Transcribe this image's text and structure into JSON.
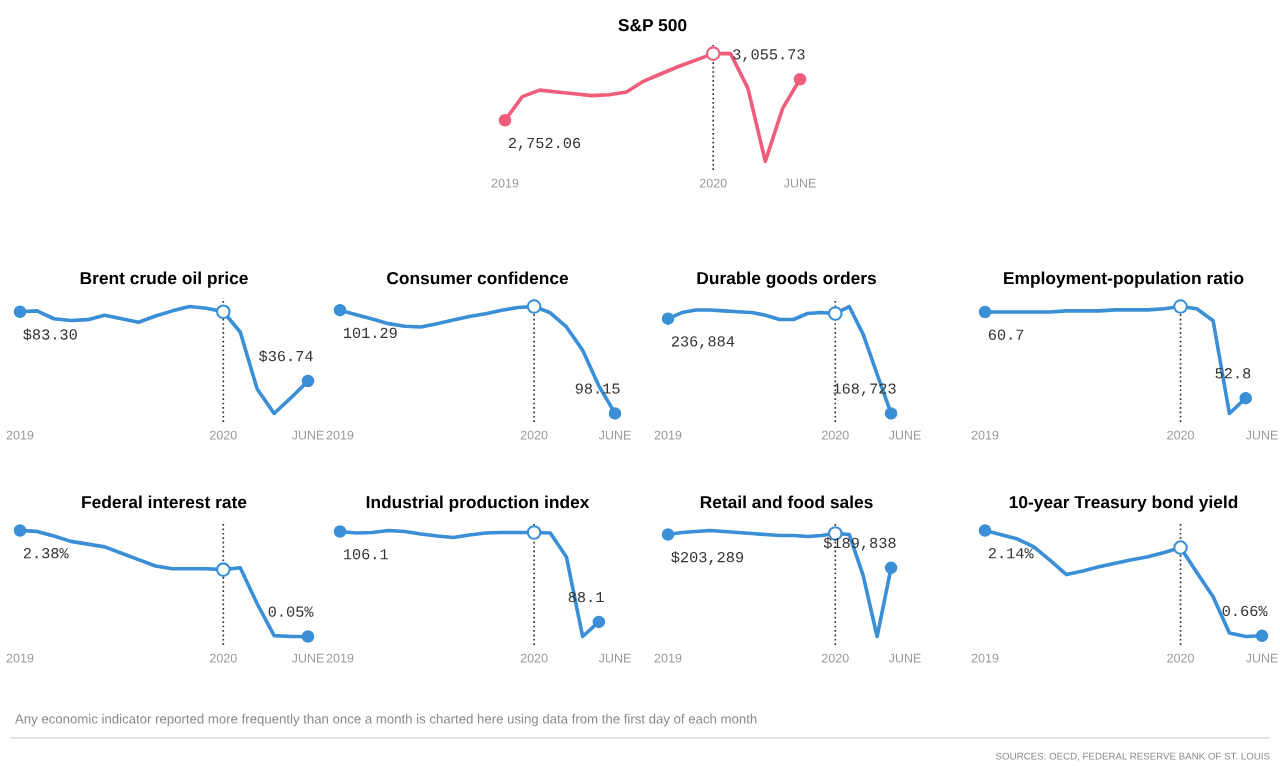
{
  "chart_data": [
    {
      "type": "line",
      "title": "S&P 500",
      "color": "#ef5d7b",
      "x": [
        "2019-01",
        "2019-02",
        "2019-03",
        "2019-04",
        "2019-05",
        "2019-06",
        "2019-07",
        "2019-08",
        "2019-09",
        "2019-10",
        "2019-11",
        "2019-12",
        "2020-01",
        "2020-02",
        "2020-03",
        "2020-04",
        "2020-05",
        "2020-06"
      ],
      "values": [
        2752.06,
        2927,
        2975,
        2961,
        2948,
        2934,
        2941,
        2961,
        3042,
        3096,
        3150,
        3197,
        3245,
        3245,
        2988,
        2448,
        2840,
        3055.73
      ],
      "value_labels": [
        "2,752.06",
        null,
        null,
        null,
        null,
        null,
        null,
        null,
        null,
        null,
        null,
        null,
        null,
        null,
        null,
        null,
        null,
        "3,055.73"
      ],
      "xlim": [
        "2019-01",
        "2020-06"
      ],
      "xticks": [
        {
          "value": "2019-01",
          "label": "2019"
        },
        {
          "value": "2020-01",
          "label": "2020"
        },
        {
          "value": "2020-06",
          "label": "JUNE"
        }
      ],
      "ref_lines": [
        {
          "axis": "x",
          "value": "2020-01",
          "line_style": "dotted"
        }
      ]
    },
    {
      "type": "line",
      "title": "Brent crude oil price",
      "color": "#3a8fd6",
      "x": [
        "2019-01",
        "2019-02",
        "2019-03",
        "2019-04",
        "2019-05",
        "2019-06",
        "2019-07",
        "2019-08",
        "2019-09",
        "2019-10",
        "2019-11",
        "2019-12",
        "2020-01",
        "2020-02",
        "2020-03",
        "2020-04",
        "2020-05",
        "2020-06"
      ],
      "values": [
        83.3,
        83.9,
        78.6,
        77.4,
        78.0,
        81.0,
        78.6,
        76.2,
        80.4,
        83.9,
        86.8,
        85.7,
        83.3,
        69.7,
        31.4,
        14.9,
        25.5,
        36.74
      ],
      "value_labels": [
        "$83.30",
        null,
        null,
        null,
        null,
        null,
        null,
        null,
        null,
        null,
        null,
        null,
        null,
        null,
        null,
        null,
        null,
        "$36.74"
      ],
      "xlim": [
        "2019-01",
        "2020-06"
      ],
      "xticks": [
        {
          "value": "2019-01",
          "label": "2019"
        },
        {
          "value": "2020-01",
          "label": "2020"
        },
        {
          "value": "2020-06",
          "label": "JUNE"
        }
      ],
      "ref_lines": [
        {
          "axis": "x",
          "value": "2020-01",
          "line_style": "dotted"
        }
      ]
    },
    {
      "type": "line",
      "title": "Consumer confidence",
      "color": "#3a8fd6",
      "x": [
        "2019-01",
        "2019-02",
        "2019-03",
        "2019-04",
        "2019-05",
        "2019-06",
        "2019-07",
        "2019-08",
        "2019-09",
        "2019-10",
        "2019-11",
        "2019-12",
        "2020-01",
        "2020-02",
        "2020-03",
        "2020-04",
        "2020-05",
        "2020-06"
      ],
      "values": [
        101.29,
        101.15,
        101.02,
        100.88,
        100.8,
        100.78,
        100.88,
        100.99,
        101.1,
        101.18,
        101.29,
        101.37,
        101.4,
        101.21,
        100.78,
        100.07,
        98.99,
        98.15
      ],
      "value_labels": [
        "101.29",
        null,
        null,
        null,
        null,
        null,
        null,
        null,
        null,
        null,
        null,
        null,
        null,
        null,
        null,
        null,
        null,
        "98.15"
      ],
      "xlim": [
        "2019-01",
        "2020-06"
      ],
      "xticks": [
        {
          "value": "2019-01",
          "label": "2019"
        },
        {
          "value": "2020-01",
          "label": "2020"
        },
        {
          "value": "2020-06",
          "label": "JUNE"
        }
      ],
      "ref_lines": [
        {
          "axis": "x",
          "value": "2020-01",
          "line_style": "dotted"
        }
      ]
    },
    {
      "type": "line",
      "title": "Durable goods orders",
      "color": "#3a8fd6",
      "x": [
        "2019-01",
        "2019-02",
        "2019-03",
        "2019-04",
        "2019-05",
        "2019-06",
        "2019-07",
        "2019-08",
        "2019-09",
        "2019-10",
        "2019-11",
        "2019-12",
        "2020-01",
        "2020-02",
        "2020-03",
        "2020-04",
        "2020-05"
      ],
      "values": [
        236884,
        241300,
        243100,
        243100,
        242500,
        241900,
        241300,
        239400,
        236300,
        236300,
        240600,
        241300,
        240600,
        245600,
        225600,
        196900,
        168723
      ],
      "value_labels": [
        "236,884",
        null,
        null,
        null,
        null,
        null,
        null,
        null,
        null,
        null,
        null,
        null,
        null,
        null,
        null,
        null,
        "168,723"
      ],
      "xlim": [
        "2019-01",
        "2020-06"
      ],
      "xticks": [
        {
          "value": "2019-01",
          "label": "2019"
        },
        {
          "value": "2020-01",
          "label": "2020"
        },
        {
          "value": "2020-06",
          "label": "JUNE"
        }
      ],
      "ref_lines": [
        {
          "axis": "x",
          "value": "2020-01",
          "line_style": "dotted"
        }
      ]
    },
    {
      "type": "line",
      "title": "Employment-population ratio",
      "color": "#3a8fd6",
      "x": [
        "2019-01",
        "2019-02",
        "2019-03",
        "2019-04",
        "2019-05",
        "2019-06",
        "2019-07",
        "2019-08",
        "2019-09",
        "2019-10",
        "2019-11",
        "2019-12",
        "2020-01",
        "2020-02",
        "2020-03",
        "2020-04",
        "2020-05"
      ],
      "values": [
        60.7,
        60.7,
        60.7,
        60.7,
        60.7,
        60.8,
        60.8,
        60.8,
        60.9,
        60.9,
        60.9,
        61.0,
        61.2,
        61.0,
        59.9,
        51.4,
        52.8
      ],
      "value_labels": [
        "60.7",
        null,
        null,
        null,
        null,
        null,
        null,
        null,
        null,
        null,
        null,
        null,
        null,
        null,
        null,
        null,
        "52.8"
      ],
      "xlim": [
        "2019-01",
        "2020-06"
      ],
      "xticks": [
        {
          "value": "2019-01",
          "label": "2019"
        },
        {
          "value": "2020-01",
          "label": "2020"
        },
        {
          "value": "2020-06",
          "label": "JUNE"
        }
      ],
      "ref_lines": [
        {
          "axis": "x",
          "value": "2020-01",
          "line_style": "dotted"
        }
      ]
    },
    {
      "type": "line",
      "title": "Federal interest rate",
      "color": "#3a8fd6",
      "x": [
        "2019-01",
        "2019-02",
        "2019-03",
        "2019-04",
        "2019-05",
        "2019-06",
        "2019-07",
        "2019-08",
        "2019-09",
        "2019-10",
        "2019-11",
        "2019-12",
        "2020-01",
        "2020-02",
        "2020-03",
        "2020-04",
        "2020-05",
        "2020-06"
      ],
      "values": [
        2.38,
        2.36,
        2.26,
        2.14,
        2.08,
        2.02,
        1.88,
        1.74,
        1.6,
        1.54,
        1.54,
        1.54,
        1.52,
        1.56,
        0.77,
        0.07,
        0.05,
        0.05
      ],
      "value_labels": [
        "2.38%",
        null,
        null,
        null,
        null,
        null,
        null,
        null,
        null,
        null,
        null,
        null,
        null,
        null,
        null,
        null,
        null,
        "0.05%"
      ],
      "xlim": [
        "2019-01",
        "2020-06"
      ],
      "xticks": [
        {
          "value": "2019-01",
          "label": "2019"
        },
        {
          "value": "2020-01",
          "label": "2020"
        },
        {
          "value": "2020-06",
          "label": "JUNE"
        }
      ],
      "ref_lines": [
        {
          "axis": "x",
          "value": "2020-01",
          "line_style": "dotted"
        }
      ]
    },
    {
      "type": "line",
      "title": "Industrial production index",
      "color": "#3a8fd6",
      "x": [
        "2019-01",
        "2019-02",
        "2019-03",
        "2019-04",
        "2019-05",
        "2019-06",
        "2019-07",
        "2019-08",
        "2019-09",
        "2019-10",
        "2019-11",
        "2019-12",
        "2020-01",
        "2020-02",
        "2020-03",
        "2020-04",
        "2020-05"
      ],
      "values": [
        106.1,
        105.8,
        105.9,
        106.3,
        106.1,
        105.6,
        105.2,
        104.9,
        105.4,
        105.8,
        105.9,
        105.9,
        105.9,
        105.8,
        101.0,
        85.2,
        88.1
      ],
      "value_labels": [
        "106.1",
        null,
        null,
        null,
        null,
        null,
        null,
        null,
        null,
        null,
        null,
        null,
        null,
        null,
        null,
        null,
        "88.1"
      ],
      "xlim": [
        "2019-01",
        "2020-06"
      ],
      "xticks": [
        {
          "value": "2019-01",
          "label": "2019"
        },
        {
          "value": "2020-01",
          "label": "2020"
        },
        {
          "value": "2020-06",
          "label": "JUNE"
        }
      ],
      "ref_lines": [
        {
          "axis": "x",
          "value": "2020-01",
          "line_style": "dotted"
        }
      ]
    },
    {
      "type": "line",
      "title": "Retail and food sales",
      "color": "#3a8fd6",
      "x": [
        "2019-01",
        "2019-02",
        "2019-03",
        "2019-04",
        "2019-05",
        "2019-06",
        "2019-07",
        "2019-08",
        "2019-09",
        "2019-10",
        "2019-11",
        "2019-12",
        "2020-01",
        "2020-02",
        "2020-03",
        "2020-04",
        "2020-05"
      ],
      "values": [
        203289,
        204100,
        204500,
        204900,
        204500,
        204100,
        203700,
        203300,
        202900,
        202900,
        202500,
        202900,
        203700,
        203300,
        186700,
        162100,
        189838
      ],
      "value_labels": [
        "$203,289",
        null,
        null,
        null,
        null,
        null,
        null,
        null,
        null,
        null,
        null,
        null,
        null,
        null,
        null,
        null,
        "$189,838"
      ],
      "xlim": [
        "2019-01",
        "2020-06"
      ],
      "xticks": [
        {
          "value": "2019-01",
          "label": "2019"
        },
        {
          "value": "2020-01",
          "label": "2020"
        },
        {
          "value": "2020-06",
          "label": "JUNE"
        }
      ],
      "ref_lines": [
        {
          "axis": "x",
          "value": "2020-01",
          "line_style": "dotted"
        }
      ]
    },
    {
      "type": "line",
      "title": "10-year Treasury bond yield",
      "color": "#3a8fd6",
      "x": [
        "2019-01",
        "2019-02",
        "2019-03",
        "2019-04",
        "2019-05",
        "2019-06",
        "2019-07",
        "2019-08",
        "2019-09",
        "2019-10",
        "2019-11",
        "2019-12",
        "2020-01",
        "2020-02",
        "2020-03",
        "2020-04",
        "2020-05",
        "2020-06"
      ],
      "values": [
        2.14,
        2.08,
        2.02,
        1.91,
        1.72,
        1.52,
        1.57,
        1.63,
        1.68,
        1.73,
        1.77,
        1.83,
        1.9,
        1.55,
        1.21,
        0.7,
        0.65,
        0.66
      ],
      "value_labels": [
        "2.14%",
        null,
        null,
        null,
        null,
        null,
        null,
        null,
        null,
        null,
        null,
        null,
        null,
        null,
        null,
        null,
        null,
        "0.66%"
      ],
      "xlim": [
        "2019-01",
        "2020-06"
      ],
      "xticks": [
        {
          "value": "2019-01",
          "label": "2019"
        },
        {
          "value": "2020-01",
          "label": "2020"
        },
        {
          "value": "2020-06",
          "label": "JUNE"
        }
      ],
      "ref_lines": [
        {
          "axis": "x",
          "value": "2020-01",
          "line_style": "dotted"
        }
      ],
      "annotations": [
        "Any economic indicator reported more frequently than once a month is charted here using data from the first day of each month",
        "SOURCES: OECD, FEDERAL RESERVE BANK OF ST. LOUIS"
      ]
    }
  ]
}
